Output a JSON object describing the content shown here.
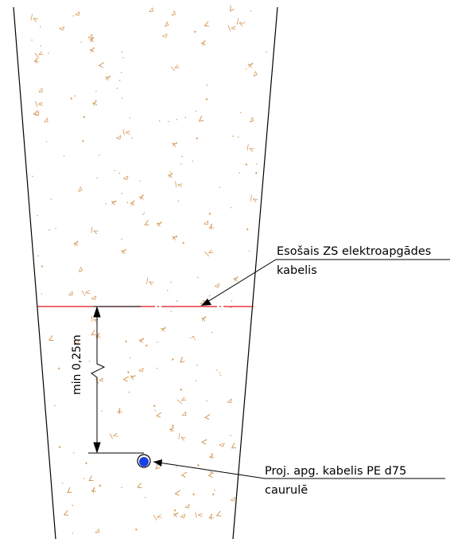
{
  "labels": {
    "existing_cable_line1": "Esošais ZS elektroapgādes",
    "existing_cable_line2": "kabelis",
    "proj_cable_line1": "Proj. apg. kabelis PE d75",
    "proj_cable_line2": "caurulē"
  },
  "dimension": {
    "text": "min 0,25m"
  },
  "colors": {
    "trench_outline": "#000000",
    "sand_hatch": "#d2904a",
    "existing_cable": "#e0141e",
    "proj_cable_fill": "#1c3fe6",
    "leader": "#000000"
  }
}
